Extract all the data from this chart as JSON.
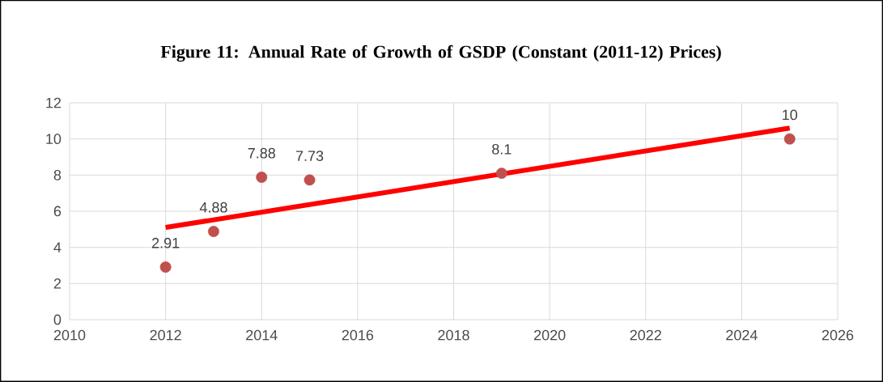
{
  "chart_data": {
    "type": "scatter",
    "title": "Figure 11: Annual Rate of Growth of GSDP  (Constant (2011-12) Prices)",
    "xlim": [
      2010,
      2026
    ],
    "xticks": [
      2010,
      2012,
      2014,
      2016,
      2018,
      2020,
      2022,
      2024,
      2026
    ],
    "ylim": [
      0,
      12
    ],
    "yticks": [
      0,
      2,
      4,
      6,
      8,
      10,
      12
    ],
    "grid": true,
    "series": [
      {
        "color": "#c0504d",
        "marker": "circle",
        "data_labels": true,
        "x": [
          2012,
          2013,
          2014,
          2015,
          2019,
          2025
        ],
        "values": [
          2.91,
          4.88,
          7.88,
          7.73,
          8.1,
          10
        ]
      },
      {
        "type": "line",
        "color": "#ff0000",
        "marker": "none",
        "line_style": "solid",
        "x": [
          2012,
          2025
        ],
        "values": [
          5.1,
          10.6
        ]
      }
    ]
  }
}
